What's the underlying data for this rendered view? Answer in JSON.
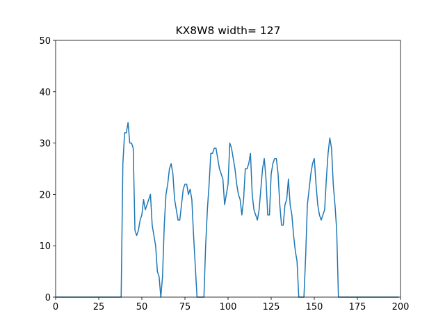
{
  "chart_data": {
    "type": "line",
    "title": "KX8W8 width= 127",
    "x": [
      0,
      1,
      2,
      3,
      4,
      5,
      6,
      7,
      8,
      9,
      10,
      11,
      12,
      13,
      14,
      15,
      16,
      17,
      18,
      19,
      20,
      21,
      22,
      23,
      24,
      25,
      26,
      27,
      28,
      29,
      30,
      31,
      32,
      33,
      34,
      35,
      36,
      37,
      38,
      39,
      40,
      41,
      42,
      43,
      44,
      45,
      46,
      47,
      48,
      49,
      50,
      51,
      52,
      53,
      54,
      55,
      56,
      57,
      58,
      59,
      60,
      61,
      62,
      63,
      64,
      65,
      66,
      67,
      68,
      69,
      70,
      71,
      72,
      73,
      74,
      75,
      76,
      77,
      78,
      79,
      80,
      81,
      82,
      83,
      84,
      85,
      86,
      87,
      88,
      89,
      90,
      91,
      92,
      93,
      94,
      95,
      96,
      97,
      98,
      99,
      100,
      101,
      102,
      103,
      104,
      105,
      106,
      107,
      108,
      109,
      110,
      111,
      112,
      113,
      114,
      115,
      116,
      117,
      118,
      119,
      120,
      121,
      122,
      123,
      124,
      125,
      126,
      127,
      128,
      129,
      130,
      131,
      132,
      133,
      134,
      135,
      136,
      137,
      138,
      139,
      140,
      141,
      142,
      143,
      144,
      145,
      146,
      147,
      148,
      149,
      150,
      151,
      152,
      153,
      154,
      155,
      156,
      157,
      158,
      159,
      160,
      161,
      162,
      163,
      164,
      165,
      166,
      167,
      168,
      169,
      170,
      171,
      172,
      173,
      174,
      175,
      176,
      177,
      178,
      179,
      180,
      181,
      182,
      183,
      184,
      185,
      186,
      187,
      188,
      189,
      190,
      191,
      192,
      193,
      194,
      195,
      196,
      197,
      198,
      199
    ],
    "series": [
      {
        "color": "#1f77b4",
        "values": [
          0,
          0,
          0,
          0,
          0,
          0,
          0,
          0,
          0,
          0,
          0,
          0,
          0,
          0,
          0,
          0,
          0,
          0,
          0,
          0,
          0,
          0,
          0,
          0,
          0,
          0,
          0,
          0,
          0,
          0,
          0,
          0,
          0,
          0,
          0,
          0,
          0,
          0,
          0,
          26,
          32,
          32,
          34,
          30,
          30,
          29,
          13,
          12,
          13,
          15,
          16,
          19,
          17,
          18,
          19,
          20,
          14,
          12,
          10,
          5,
          4,
          0,
          4,
          14,
          20,
          22,
          25,
          26,
          24,
          19,
          17,
          15,
          15,
          18,
          21,
          22,
          22,
          20,
          21,
          19,
          12,
          6,
          0,
          0,
          0,
          0,
          0,
          10,
          17,
          22,
          28,
          28,
          29,
          29,
          27,
          25,
          24,
          23,
          18,
          20,
          22,
          30,
          29,
          27,
          25,
          22,
          20,
          19,
          16,
          19,
          25,
          25,
          26,
          28,
          20,
          17,
          16,
          15,
          17,
          21,
          25,
          27,
          23,
          16,
          16,
          24,
          26,
          27,
          27,
          24,
          18,
          14,
          14,
          18,
          19,
          23,
          18,
          16,
          12,
          9,
          7,
          0,
          0,
          0,
          0,
          8,
          18,
          21,
          24,
          26,
          27,
          22,
          18,
          16,
          15,
          16,
          17,
          23,
          28,
          31,
          29,
          22,
          18,
          13,
          0,
          0,
          0,
          0,
          0,
          0,
          0,
          0,
          0,
          0,
          0,
          0,
          0,
          0,
          0,
          0,
          0,
          0,
          0,
          0,
          0,
          0,
          0,
          0,
          0,
          0,
          0,
          0,
          0,
          0,
          0,
          0,
          0,
          0,
          0,
          0
        ]
      }
    ],
    "xlim": [
      0,
      200
    ],
    "xticks": [
      0,
      25,
      50,
      75,
      100,
      125,
      150,
      175,
      200
    ],
    "ylim": [
      0,
      50
    ],
    "yticks": [
      0,
      10,
      20,
      30,
      40,
      50
    ]
  }
}
